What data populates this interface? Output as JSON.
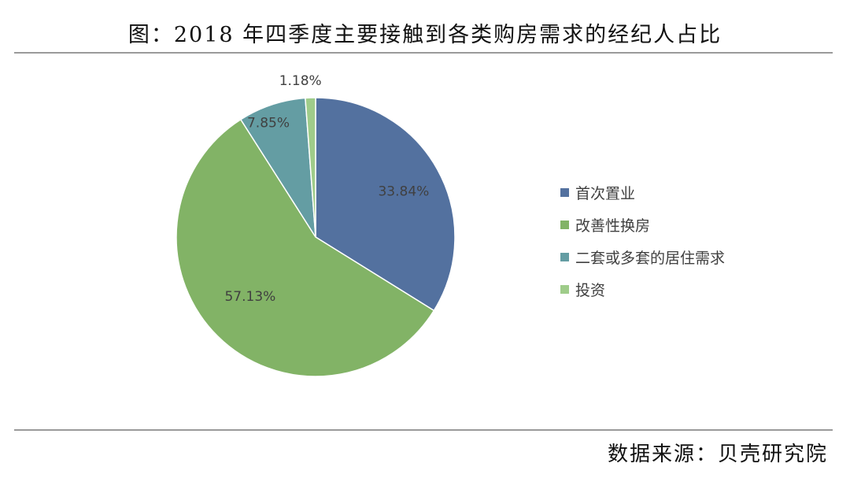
{
  "title": "图：2018 年四季度主要接触到各类购房需求的经纪人占比",
  "source": "数据来源：贝壳研究院",
  "chart_data": {
    "type": "pie",
    "title": "图：2018 年四季度主要接触到各类购房需求的经纪人占比",
    "legend_position": "right",
    "slices": [
      {
        "name": "首次置业",
        "value": 33.84,
        "label": "33.84%",
        "color": "#53719f"
      },
      {
        "name": "改善性换房",
        "value": 57.13,
        "label": "57.13%",
        "color": "#82b366"
      },
      {
        "name": "二套或多套的居住需求",
        "value": 7.85,
        "label": "7.85%",
        "color": "#649da3"
      },
      {
        "name": "投资",
        "value": 1.18,
        "label": "1.18%",
        "color": "#9fcc8a"
      }
    ]
  }
}
